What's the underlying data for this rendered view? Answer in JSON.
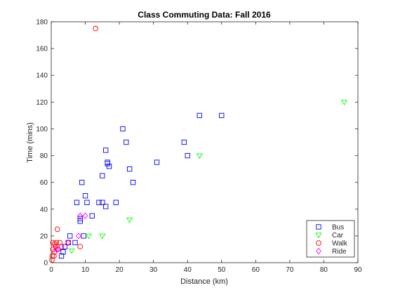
{
  "chart_data": {
    "type": "scatter",
    "title": "Class Commuting Data: Fall 2016",
    "xlabel": "Distance (km)",
    "ylabel": "Time (mins)",
    "xlim": [
      0,
      90
    ],
    "ylim": [
      0,
      180
    ],
    "xticks": [
      0,
      10,
      20,
      30,
      40,
      50,
      60,
      70,
      80,
      90
    ],
    "yticks": [
      0,
      20,
      40,
      60,
      80,
      100,
      120,
      140,
      160,
      180
    ],
    "grid": false,
    "legend_position": "bottom-right",
    "series": [
      {
        "name": "Bus",
        "marker": "square",
        "color": "#0000ff",
        "points": [
          [
            3,
            5
          ],
          [
            3.5,
            8
          ],
          [
            4,
            12
          ],
          [
            5,
            15
          ],
          [
            5.5,
            20
          ],
          [
            7,
            15
          ],
          [
            7.5,
            45
          ],
          [
            8.5,
            31
          ],
          [
            8.5,
            33
          ],
          [
            9,
            60
          ],
          [
            9.5,
            20
          ],
          [
            10,
            50
          ],
          [
            10.5,
            45
          ],
          [
            12,
            35
          ],
          [
            14,
            45
          ],
          [
            15,
            45
          ],
          [
            15,
            65
          ],
          [
            16,
            42
          ],
          [
            16,
            84
          ],
          [
            16.5,
            75
          ],
          [
            16.5,
            74
          ],
          [
            17,
            72
          ],
          [
            19,
            45
          ],
          [
            21,
            100
          ],
          [
            22,
            90
          ],
          [
            23,
            70
          ],
          [
            24,
            60
          ],
          [
            31,
            75
          ],
          [
            39,
            90
          ],
          [
            40,
            80
          ],
          [
            43.5,
            110
          ],
          [
            50,
            110
          ]
        ]
      },
      {
        "name": "Car",
        "marker": "triangle-down",
        "color": "#00ff00",
        "points": [
          [
            6,
            9
          ],
          [
            11,
            20
          ],
          [
            15,
            20
          ],
          [
            23,
            32
          ],
          [
            43.5,
            80
          ],
          [
            86,
            120
          ]
        ]
      },
      {
        "name": "Walk",
        "marker": "circle",
        "color": "#ff0000",
        "points": [
          [
            0.2,
            2
          ],
          [
            0.3,
            5
          ],
          [
            0.5,
            10
          ],
          [
            0.5,
            15
          ],
          [
            0.8,
            5
          ],
          [
            1,
            14
          ],
          [
            1,
            8
          ],
          [
            1.3,
            12
          ],
          [
            1.5,
            15
          ],
          [
            1.8,
            25
          ],
          [
            2,
            10
          ],
          [
            2.5,
            15
          ],
          [
            3,
            12
          ],
          [
            5,
            15
          ],
          [
            8.5,
            12
          ],
          [
            13,
            175
          ]
        ]
      },
      {
        "name": "Ride",
        "marker": "diamond",
        "color": "#ff00ff",
        "points": [
          [
            1.5,
            10
          ],
          [
            2,
            10
          ],
          [
            5,
            15
          ],
          [
            8,
            20
          ],
          [
            8.5,
            35
          ],
          [
            10,
            35
          ]
        ]
      }
    ]
  }
}
